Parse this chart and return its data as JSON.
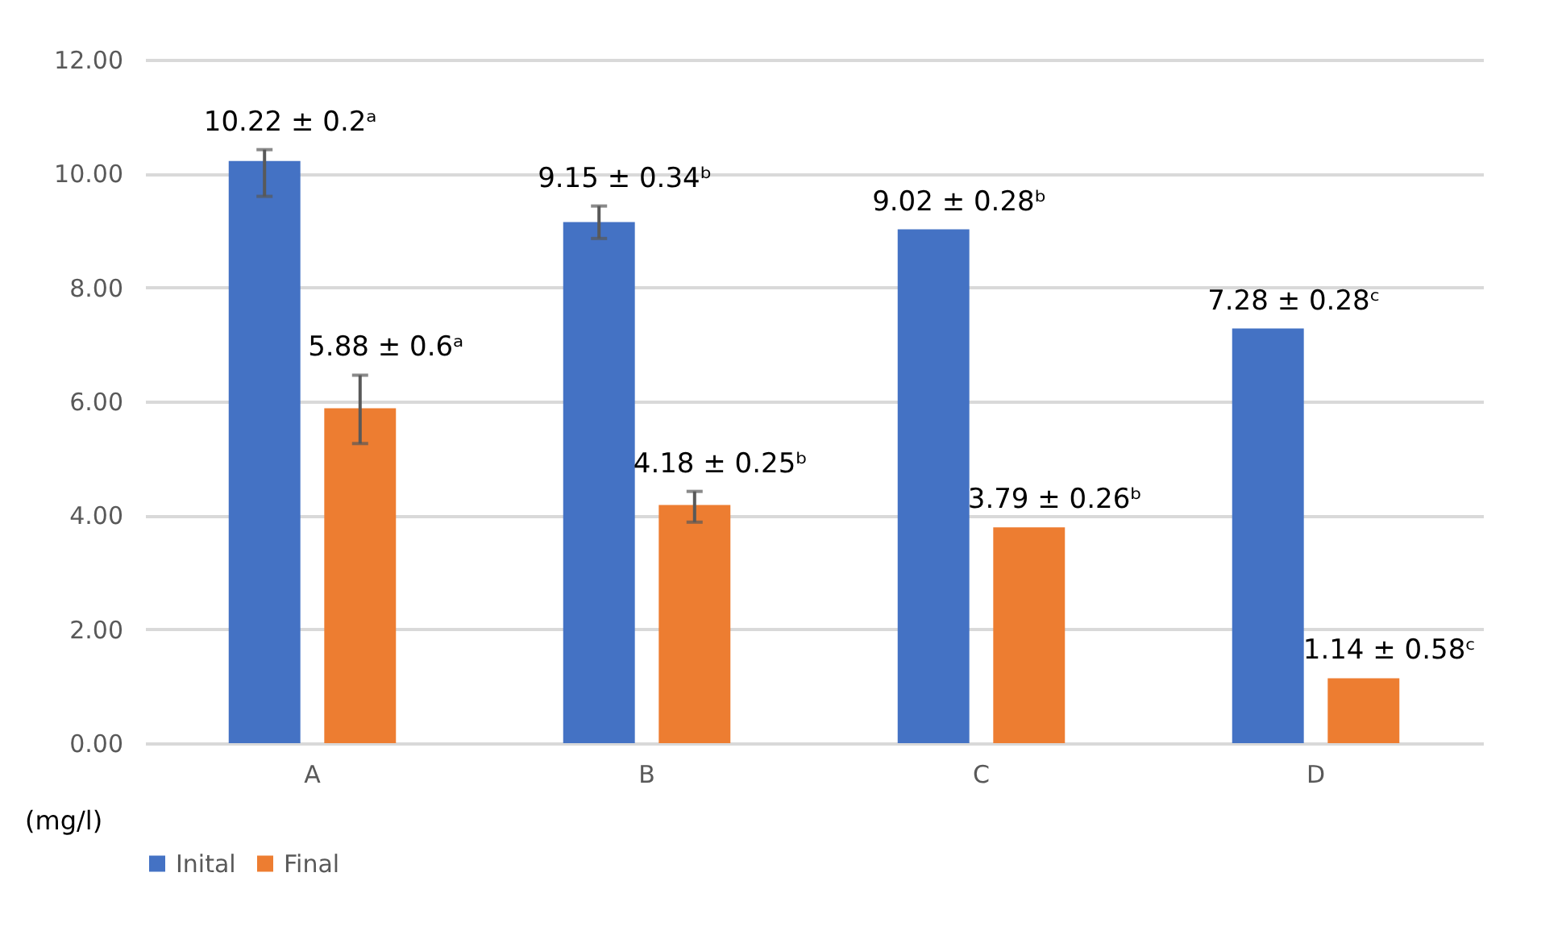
{
  "chart_data": {
    "type": "bar",
    "categories": [
      "A",
      "B",
      "C",
      "D"
    ],
    "ylabel": "(mg/l)",
    "ylim": [
      0,
      12
    ],
    "yticks": [
      {
        "value": 0,
        "label": "0.00"
      },
      {
        "value": 2,
        "label": "2.00"
      },
      {
        "value": 4,
        "label": "4.00"
      },
      {
        "value": 6,
        "label": "6.00"
      },
      {
        "value": 8,
        "label": "8.00"
      },
      {
        "value": 10,
        "label": "10.00"
      },
      {
        "value": 12,
        "label": "12.00"
      }
    ],
    "grid": "y",
    "legend": "bottom",
    "series": [
      {
        "name": "Inital",
        "color": "#4472c4",
        "values": [
          10.22,
          9.15,
          9.02,
          7.28
        ],
        "errors": [
          [
            9.6,
            10.42
          ],
          [
            8.86,
            9.43
          ],
          null,
          null
        ],
        "value_labels": [
          "10.22 ± 0.2ᵃ",
          "9.15 ± 0.34ᵇ",
          "9.02 ± 0.28ᵇ",
          "7.28 ± 0.28ᶜ"
        ]
      },
      {
        "name": "Final",
        "color": "#ed7d31",
        "values": [
          5.88,
          4.18,
          3.79,
          1.14
        ],
        "errors": [
          [
            5.26,
            6.46
          ],
          [
            3.88,
            4.42
          ],
          null,
          null
        ],
        "value_labels": [
          "5.88 ± 0.6ᵃ",
          "4.18 ± 0.25ᵇ",
          "3.79 ± 0.26ᵇ",
          "1.14 ± 0.58ᶜ"
        ]
      }
    ]
  }
}
